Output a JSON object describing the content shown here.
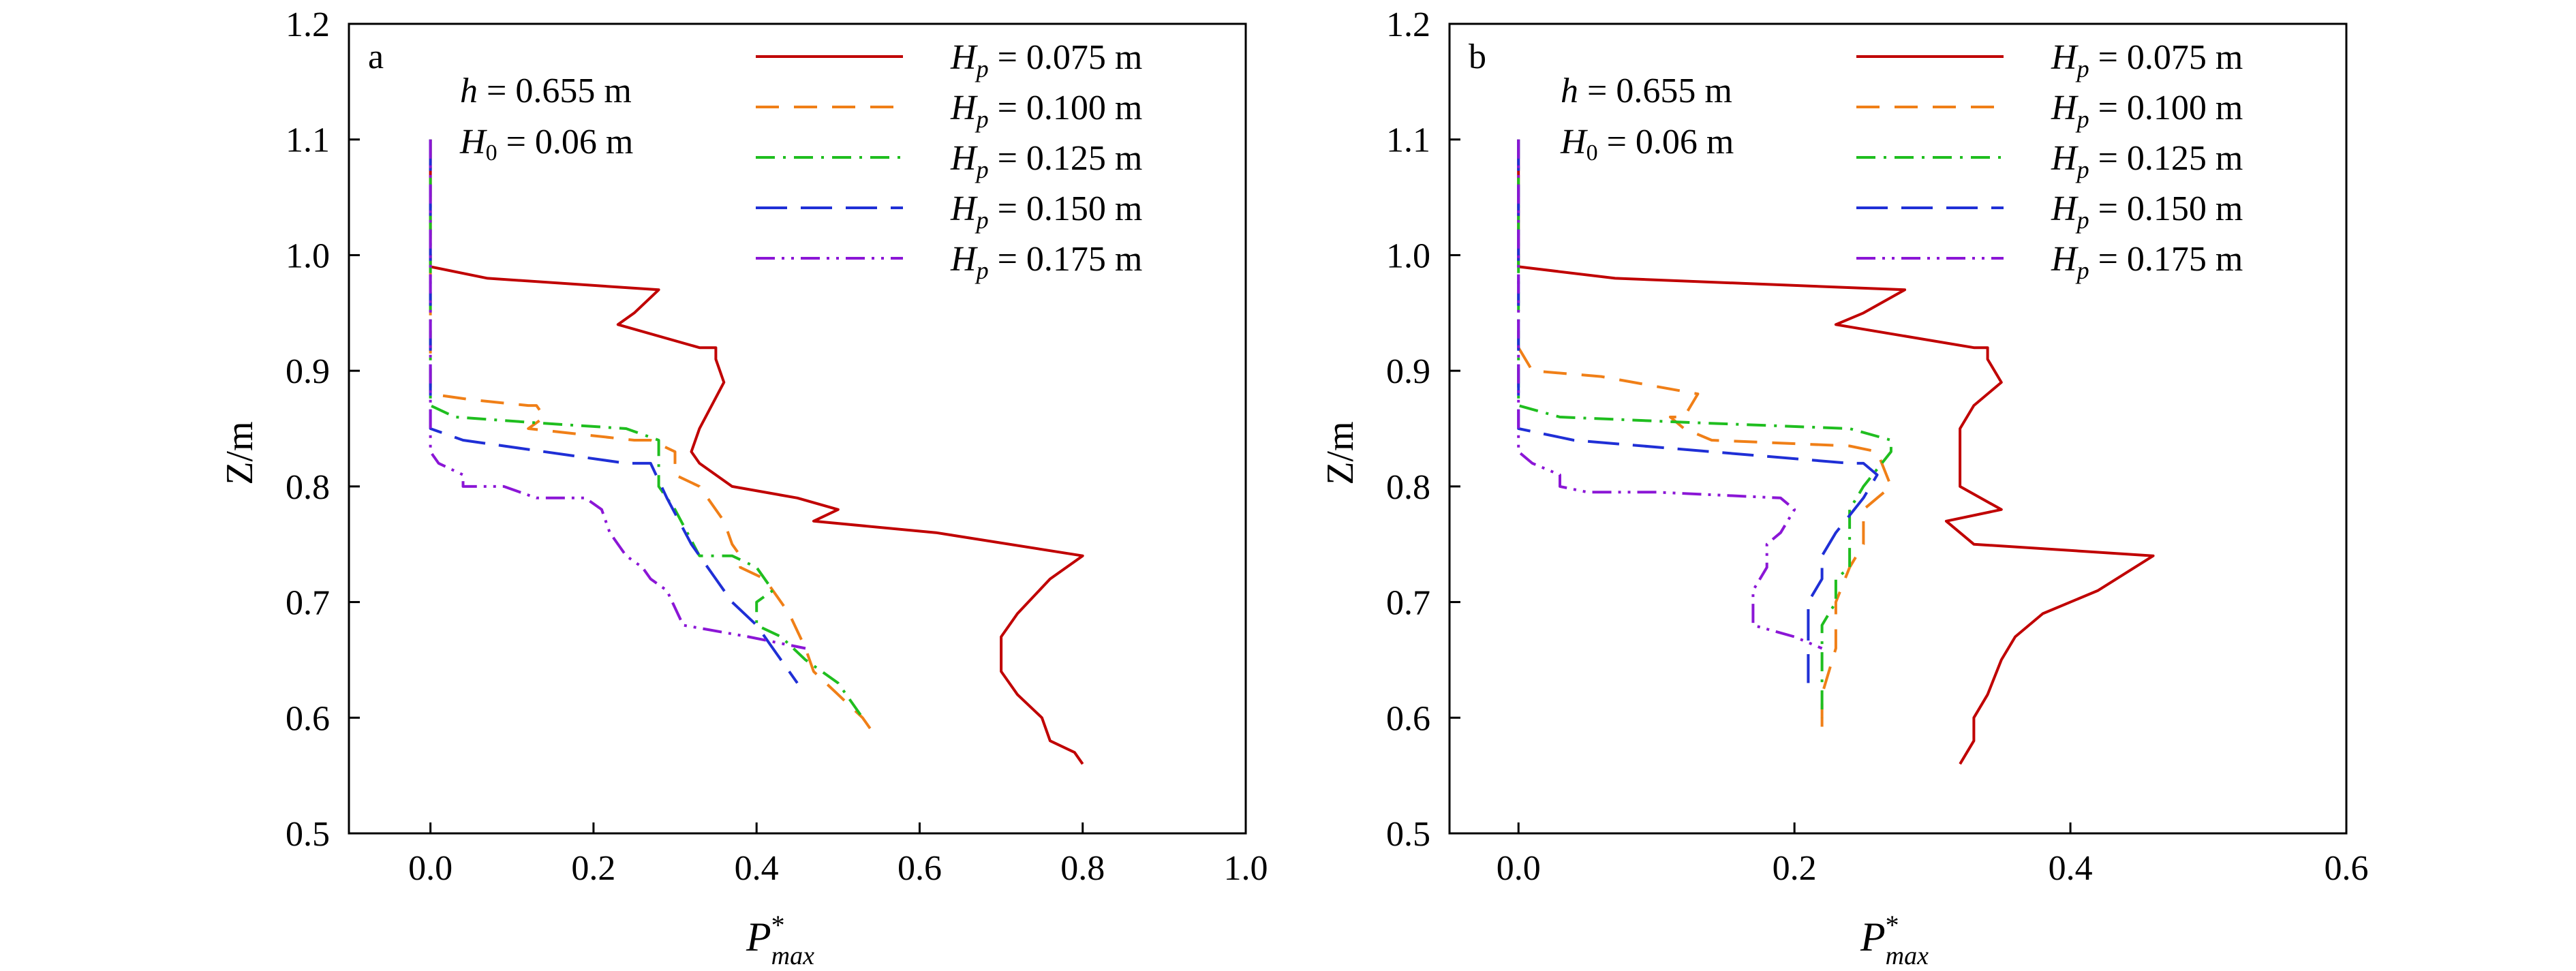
{
  "chart_data": [
    {
      "type": "line",
      "panel_label": "a",
      "annotations": [
        "h = 0.655 m",
        "H0 = 0.06 m"
      ],
      "xlabel": "P*max",
      "ylabel": "Z/m",
      "xlim": [
        -0.1,
        1.0
      ],
      "ylim": [
        0.5,
        1.2
      ],
      "xticks": [
        "0.0",
        "0.2",
        "0.4",
        "0.6",
        "0.8",
        "1.0"
      ],
      "xtick_values": [
        0.0,
        0.2,
        0.4,
        0.6,
        0.8,
        1.0
      ],
      "yticks": [
        "0.5",
        "0.6",
        "0.7",
        "0.8",
        "0.9",
        "1.0",
        "1.1",
        "1.2"
      ],
      "ytick_values": [
        0.5,
        0.6,
        0.7,
        0.8,
        0.9,
        1.0,
        1.1,
        1.2
      ],
      "grid": false,
      "legend_position": "top-right",
      "series": [
        {
          "name": "Hp = 0.075 m",
          "color": "#c00000",
          "dash": "solid",
          "points": [
            [
              0,
              1.1
            ],
            [
              0,
              0.99
            ],
            [
              0.07,
              0.98
            ],
            [
              0.28,
              0.97
            ],
            [
              0.25,
              0.95
            ],
            [
              0.23,
              0.94
            ],
            [
              0.33,
              0.92
            ],
            [
              0.35,
              0.92
            ],
            [
              0.35,
              0.91
            ],
            [
              0.36,
              0.89
            ],
            [
              0.33,
              0.85
            ],
            [
              0.32,
              0.83
            ],
            [
              0.33,
              0.82
            ],
            [
              0.37,
              0.8
            ],
            [
              0.45,
              0.79
            ],
            [
              0.5,
              0.78
            ],
            [
              0.47,
              0.77
            ],
            [
              0.62,
              0.76
            ],
            [
              0.8,
              0.74
            ],
            [
              0.76,
              0.72
            ],
            [
              0.72,
              0.69
            ],
            [
              0.7,
              0.67
            ],
            [
              0.7,
              0.64
            ],
            [
              0.72,
              0.62
            ],
            [
              0.75,
              0.6
            ],
            [
              0.76,
              0.58
            ],
            [
              0.79,
              0.57
            ],
            [
              0.8,
              0.56
            ]
          ]
        },
        {
          "name": "Hp = 0.100 m",
          "color": "#f07f17",
          "dash": "long",
          "points": [
            [
              0,
              1.1
            ],
            [
              0,
              0.88
            ],
            [
              0.05,
              0.875
            ],
            [
              0.12,
              0.87
            ],
            [
              0.13,
              0.87
            ],
            [
              0.14,
              0.86
            ],
            [
              0.12,
              0.85
            ],
            [
              0.25,
              0.84
            ],
            [
              0.27,
              0.84
            ],
            [
              0.3,
              0.83
            ],
            [
              0.3,
              0.81
            ],
            [
              0.33,
              0.8
            ],
            [
              0.36,
              0.77
            ],
            [
              0.37,
              0.75
            ],
            [
              0.38,
              0.74
            ],
            [
              0.38,
              0.73
            ],
            [
              0.41,
              0.72
            ],
            [
              0.44,
              0.69
            ],
            [
              0.46,
              0.66
            ],
            [
              0.47,
              0.64
            ],
            [
              0.5,
              0.62
            ],
            [
              0.53,
              0.6
            ],
            [
              0.54,
              0.59
            ]
          ]
        },
        {
          "name": "Hp = 0.125 m",
          "color": "#1fbe1f",
          "dash": "dashdot",
          "points": [
            [
              0,
              1.1
            ],
            [
              0,
              0.88
            ],
            [
              0,
              0.87
            ],
            [
              0.03,
              0.86
            ],
            [
              0.13,
              0.855
            ],
            [
              0.24,
              0.85
            ],
            [
              0.28,
              0.84
            ],
            [
              0.28,
              0.83
            ],
            [
              0.28,
              0.8
            ],
            [
              0.3,
              0.78
            ],
            [
              0.33,
              0.74
            ],
            [
              0.37,
              0.74
            ],
            [
              0.4,
              0.73
            ],
            [
              0.42,
              0.71
            ],
            [
              0.4,
              0.7
            ],
            [
              0.4,
              0.68
            ],
            [
              0.43,
              0.67
            ],
            [
              0.46,
              0.65
            ],
            [
              0.5,
              0.63
            ],
            [
              0.53,
              0.6
            ]
          ]
        },
        {
          "name": "Hp = 0.150 m",
          "color": "#1f2fd6",
          "dash": "longest",
          "points": [
            [
              0,
              1.1
            ],
            [
              0,
              0.85
            ],
            [
              0.04,
              0.84
            ],
            [
              0.24,
              0.82
            ],
            [
              0.27,
              0.82
            ],
            [
              0.29,
              0.79
            ],
            [
              0.32,
              0.75
            ],
            [
              0.35,
              0.72
            ],
            [
              0.37,
              0.7
            ],
            [
              0.4,
              0.68
            ],
            [
              0.42,
              0.66
            ],
            [
              0.45,
              0.63
            ]
          ]
        },
        {
          "name": "Hp = 0.175 m",
          "color": "#8b16d6",
          "dash": "dashdotdot",
          "points": [
            [
              0,
              1.1
            ],
            [
              0,
              0.83
            ],
            [
              0.01,
              0.82
            ],
            [
              0.04,
              0.81
            ],
            [
              0.04,
              0.8
            ],
            [
              0.09,
              0.8
            ],
            [
              0.13,
              0.79
            ],
            [
              0.19,
              0.79
            ],
            [
              0.21,
              0.78
            ],
            [
              0.22,
              0.76
            ],
            [
              0.24,
              0.74
            ],
            [
              0.26,
              0.73
            ],
            [
              0.27,
              0.72
            ],
            [
              0.29,
              0.71
            ],
            [
              0.31,
              0.68
            ],
            [
              0.39,
              0.67
            ],
            [
              0.46,
              0.66
            ]
          ]
        }
      ]
    },
    {
      "type": "line",
      "panel_label": "b",
      "annotations": [
        "h = 0.655 m",
        "H0 = 0.06 m"
      ],
      "xlabel": "P*max",
      "ylabel": "Z/m",
      "xlim": [
        -0.05,
        0.6
      ],
      "ylim": [
        0.5,
        1.2
      ],
      "xticks": [
        "0.0",
        "0.2",
        "0.4",
        "0.6"
      ],
      "xtick_values": [
        0.0,
        0.2,
        0.4,
        0.6
      ],
      "yticks": [
        "0.5",
        "0.6",
        "0.7",
        "0.8",
        "0.9",
        "1.0",
        "1.1",
        "1.2"
      ],
      "ytick_values": [
        0.5,
        0.6,
        0.7,
        0.8,
        0.9,
        1.0,
        1.1,
        1.2
      ],
      "grid": false,
      "legend_position": "top-right",
      "series": [
        {
          "name": "Hp = 0.075 m",
          "color": "#c00000",
          "dash": "solid",
          "points": [
            [
              0,
              1.1
            ],
            [
              0,
              0.99
            ],
            [
              0.07,
              0.98
            ],
            [
              0.28,
              0.97
            ],
            [
              0.25,
              0.95
            ],
            [
              0.23,
              0.94
            ],
            [
              0.33,
              0.92
            ],
            [
              0.34,
              0.92
            ],
            [
              0.34,
              0.91
            ],
            [
              0.35,
              0.89
            ],
            [
              0.33,
              0.87
            ],
            [
              0.32,
              0.85
            ],
            [
              0.32,
              0.83
            ],
            [
              0.32,
              0.8
            ],
            [
              0.35,
              0.78
            ],
            [
              0.31,
              0.77
            ],
            [
              0.33,
              0.75
            ],
            [
              0.46,
              0.74
            ],
            [
              0.42,
              0.71
            ],
            [
              0.38,
              0.69
            ],
            [
              0.36,
              0.67
            ],
            [
              0.35,
              0.65
            ],
            [
              0.34,
              0.62
            ],
            [
              0.33,
              0.6
            ],
            [
              0.33,
              0.58
            ],
            [
              0.32,
              0.56
            ]
          ]
        },
        {
          "name": "Hp = 0.100 m",
          "color": "#f07f17",
          "dash": "long",
          "points": [
            [
              0,
              0.92
            ],
            [
              0.01,
              0.9
            ],
            [
              0.06,
              0.895
            ],
            [
              0.13,
              0.88
            ],
            [
              0.12,
              0.86
            ],
            [
              0.11,
              0.86
            ],
            [
              0.12,
              0.85
            ],
            [
              0.14,
              0.84
            ],
            [
              0.24,
              0.835
            ],
            [
              0.26,
              0.83
            ],
            [
              0.27,
              0.8
            ],
            [
              0.26,
              0.79
            ],
            [
              0.25,
              0.78
            ],
            [
              0.25,
              0.75
            ],
            [
              0.24,
              0.73
            ],
            [
              0.23,
              0.7
            ],
            [
              0.23,
              0.66
            ],
            [
              0.22,
              0.62
            ],
            [
              0.22,
              0.58
            ]
          ]
        },
        {
          "name": "Hp = 0.125 m",
          "color": "#1fbe1f",
          "dash": "dashdot",
          "points": [
            [
              0,
              1.1
            ],
            [
              0,
              0.88
            ],
            [
              0,
              0.87
            ],
            [
              0.03,
              0.86
            ],
            [
              0.13,
              0.855
            ],
            [
              0.24,
              0.85
            ],
            [
              0.27,
              0.84
            ],
            [
              0.27,
              0.83
            ],
            [
              0.25,
              0.8
            ],
            [
              0.24,
              0.78
            ],
            [
              0.24,
              0.75
            ],
            [
              0.24,
              0.73
            ],
            [
              0.23,
              0.72
            ],
            [
              0.23,
              0.7
            ],
            [
              0.22,
              0.68
            ],
            [
              0.22,
              0.65
            ],
            [
              0.22,
              0.62
            ],
            [
              0.22,
              0.6
            ]
          ]
        },
        {
          "name": "Hp = 0.150 m",
          "color": "#1f2fd6",
          "dash": "longest",
          "points": [
            [
              0,
              1.1
            ],
            [
              0,
              0.85
            ],
            [
              0.04,
              0.84
            ],
            [
              0.24,
              0.82
            ],
            [
              0.25,
              0.82
            ],
            [
              0.26,
              0.81
            ],
            [
              0.25,
              0.79
            ],
            [
              0.23,
              0.76
            ],
            [
              0.22,
              0.74
            ],
            [
              0.22,
              0.72
            ],
            [
              0.21,
              0.7
            ],
            [
              0.21,
              0.67
            ],
            [
              0.21,
              0.65
            ],
            [
              0.21,
              0.63
            ]
          ]
        },
        {
          "name": "Hp = 0.175 m",
          "color": "#8b16d6",
          "dash": "dashdotdot",
          "points": [
            [
              0,
              1.1
            ],
            [
              0,
              0.83
            ],
            [
              0.01,
              0.82
            ],
            [
              0.03,
              0.81
            ],
            [
              0.03,
              0.8
            ],
            [
              0.05,
              0.795
            ],
            [
              0.1,
              0.795
            ],
            [
              0.19,
              0.79
            ],
            [
              0.2,
              0.78
            ],
            [
              0.19,
              0.76
            ],
            [
              0.18,
              0.75
            ],
            [
              0.18,
              0.73
            ],
            [
              0.17,
              0.71
            ],
            [
              0.17,
              0.69
            ],
            [
              0.17,
              0.68
            ],
            [
              0.2,
              0.67
            ],
            [
              0.22,
              0.66
            ]
          ]
        }
      ]
    }
  ]
}
